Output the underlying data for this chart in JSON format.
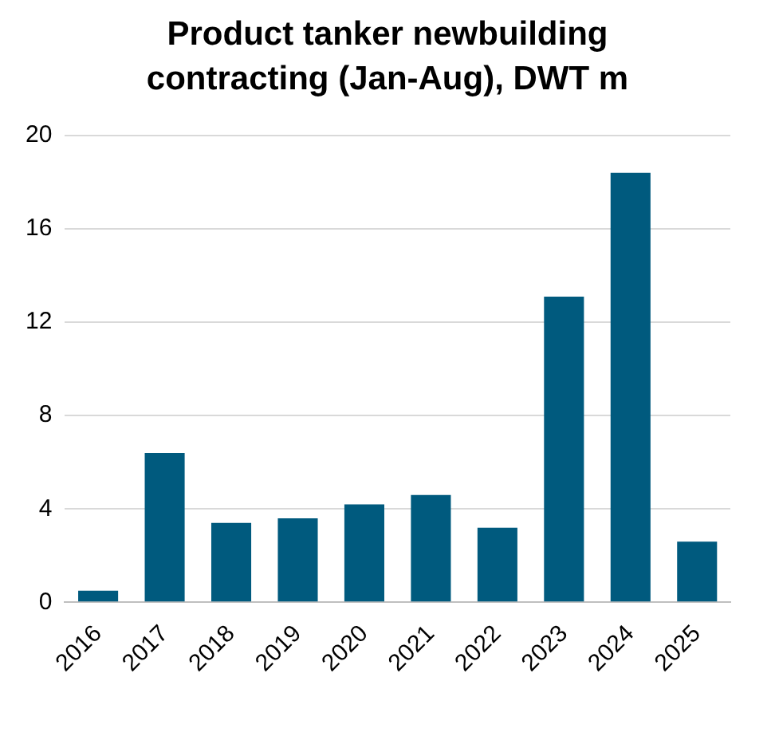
{
  "chart_data": {
    "type": "bar",
    "title": "Product tanker newbuilding contracting (Jan-Aug), DWT m",
    "categories": [
      "2016",
      "2017",
      "2018",
      "2019",
      "2020",
      "2021",
      "2022",
      "2023",
      "2024",
      "2025"
    ],
    "values": [
      0.5,
      6.4,
      3.4,
      3.6,
      4.2,
      4.6,
      3.2,
      13.1,
      18.4,
      2.6
    ],
    "color": "#005a7e",
    "ylim": [
      0,
      20
    ],
    "yticks": [
      0,
      4,
      8,
      12,
      16,
      20
    ],
    "grid": "y"
  }
}
